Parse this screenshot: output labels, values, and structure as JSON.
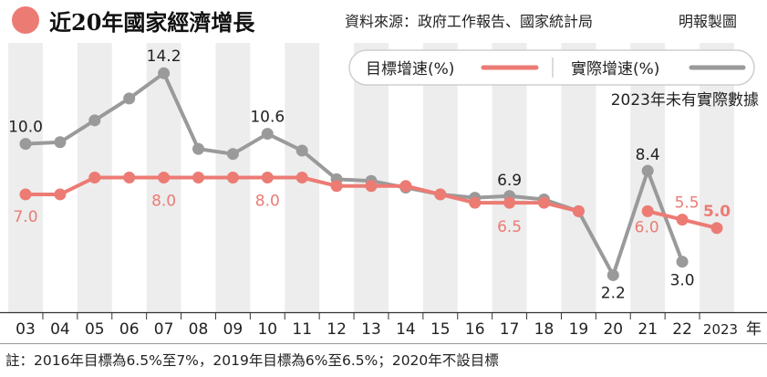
{
  "header": {
    "title": "近20年國家經濟增長",
    "source": "資料來源：政府工作報告、國家統計局",
    "credit": "明報製圖"
  },
  "chart_data": {
    "type": "line",
    "x": [
      "03",
      "04",
      "05",
      "06",
      "07",
      "08",
      "09",
      "10",
      "11",
      "12",
      "13",
      "14",
      "15",
      "16",
      "17",
      "18",
      "19",
      "20",
      "21",
      "22",
      "2023"
    ],
    "x_suffix": "年",
    "ylim": [
      0,
      16
    ],
    "series": [
      {
        "name": "目標增速(%)",
        "color": "#ec7b74",
        "values": [
          7.0,
          7.0,
          8.0,
          8.0,
          8.0,
          8.0,
          8.0,
          8.0,
          8.0,
          7.5,
          7.5,
          7.5,
          7.0,
          6.5,
          6.5,
          6.5,
          6.0,
          null,
          6.0,
          5.5,
          5.0
        ]
      },
      {
        "name": "實際增速(%)",
        "color": "#9a9a9a",
        "values": [
          10.0,
          10.1,
          11.4,
          12.7,
          14.2,
          9.7,
          9.4,
          10.6,
          9.6,
          7.9,
          7.8,
          7.4,
          7.0,
          6.8,
          6.9,
          6.7,
          6.0,
          2.2,
          8.4,
          3.0,
          null
        ]
      }
    ],
    "labels": [
      {
        "series": 1,
        "index": 0,
        "text": "10.0"
      },
      {
        "series": 1,
        "index": 4,
        "text": "14.2"
      },
      {
        "series": 1,
        "index": 7,
        "text": "10.6"
      },
      {
        "series": 1,
        "index": 14,
        "text": "6.9"
      },
      {
        "series": 1,
        "index": 17,
        "text": "2.2"
      },
      {
        "series": 1,
        "index": 18,
        "text": "8.4"
      },
      {
        "series": 1,
        "index": 19,
        "text": "3.0"
      },
      {
        "series": 0,
        "index": 0,
        "text": "7.0"
      },
      {
        "series": 0,
        "index": 4,
        "text": "8.0"
      },
      {
        "series": 0,
        "index": 7,
        "text": "8.0"
      },
      {
        "series": 0,
        "index": 14,
        "text": "6.5"
      },
      {
        "series": 0,
        "index": 18,
        "text": "6.0"
      },
      {
        "series": 0,
        "index": 19,
        "text": "5.5"
      },
      {
        "series": 0,
        "index": 20,
        "text": "5.0"
      }
    ],
    "annotation": "2023年未有實際數據",
    "footnote": "註：2016年目標為6.5%至7%，2019年目標為6%至6.5%；2020年不設目標"
  }
}
